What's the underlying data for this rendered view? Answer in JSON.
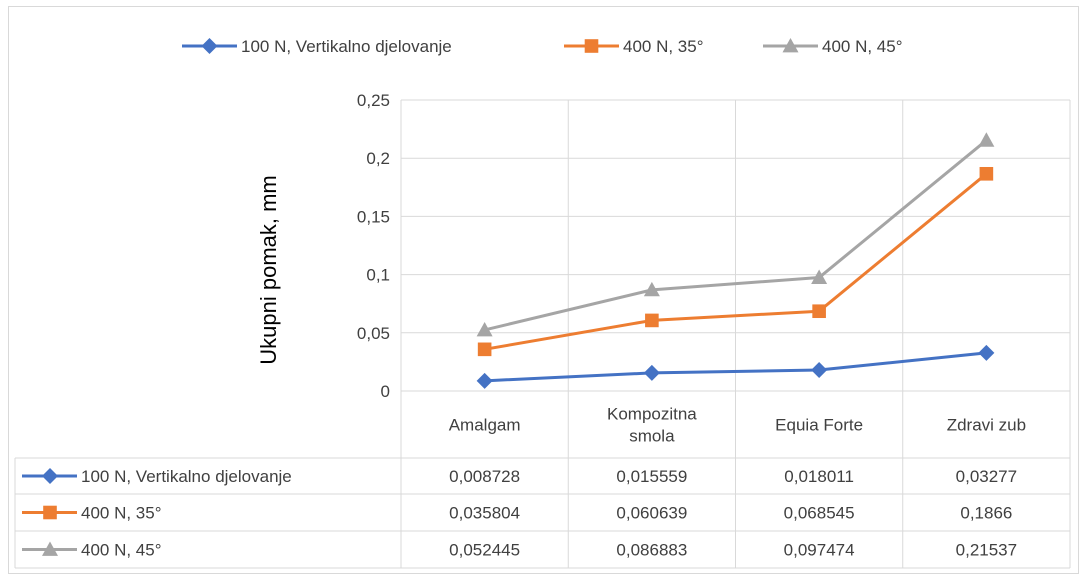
{
  "chart_data": {
    "type": "line",
    "title": "",
    "xlabel": "",
    "ylabel": "Ukupni pomak, mm",
    "ylim": [
      0,
      0.25
    ],
    "yticks": [
      "0",
      "0,05",
      "0,1",
      "0,15",
      "0,2",
      "0,25"
    ],
    "ytick_values": [
      0,
      0.05,
      0.1,
      0.15,
      0.2,
      0.25
    ],
    "grid": true,
    "legend": "top",
    "categories": [
      "Amalgam",
      "Kompozitna smola",
      "Equia Forte",
      "Zdravi zub"
    ],
    "category_lines": [
      [
        "Amalgam"
      ],
      [
        "Kompozitna",
        "smola"
      ],
      [
        "Equia Forte"
      ],
      [
        "Zdravi zub"
      ]
    ],
    "series": [
      {
        "name": "100 N, Vertikalno djelovanje",
        "color": "#4472c4",
        "marker": "diamond",
        "values": [
          0.008728,
          0.015559,
          0.018011,
          0.03277
        ],
        "labels": [
          "0,008728",
          "0,015559",
          "0,018011",
          "0,03277"
        ]
      },
      {
        "name": "400 N, 35°",
        "color": "#ed7d31",
        "marker": "square",
        "values": [
          0.035804,
          0.060639,
          0.068545,
          0.1866
        ],
        "labels": [
          "0,035804",
          "0,060639",
          "0,068545",
          "0,1866"
        ]
      },
      {
        "name": "400 N, 45°",
        "color": "#a5a5a5",
        "marker": "triangle",
        "values": [
          0.052445,
          0.086883,
          0.097474,
          0.21537
        ],
        "labels": [
          "0,052445",
          "0,086883",
          "0,097474",
          "0,21537"
        ]
      }
    ]
  }
}
